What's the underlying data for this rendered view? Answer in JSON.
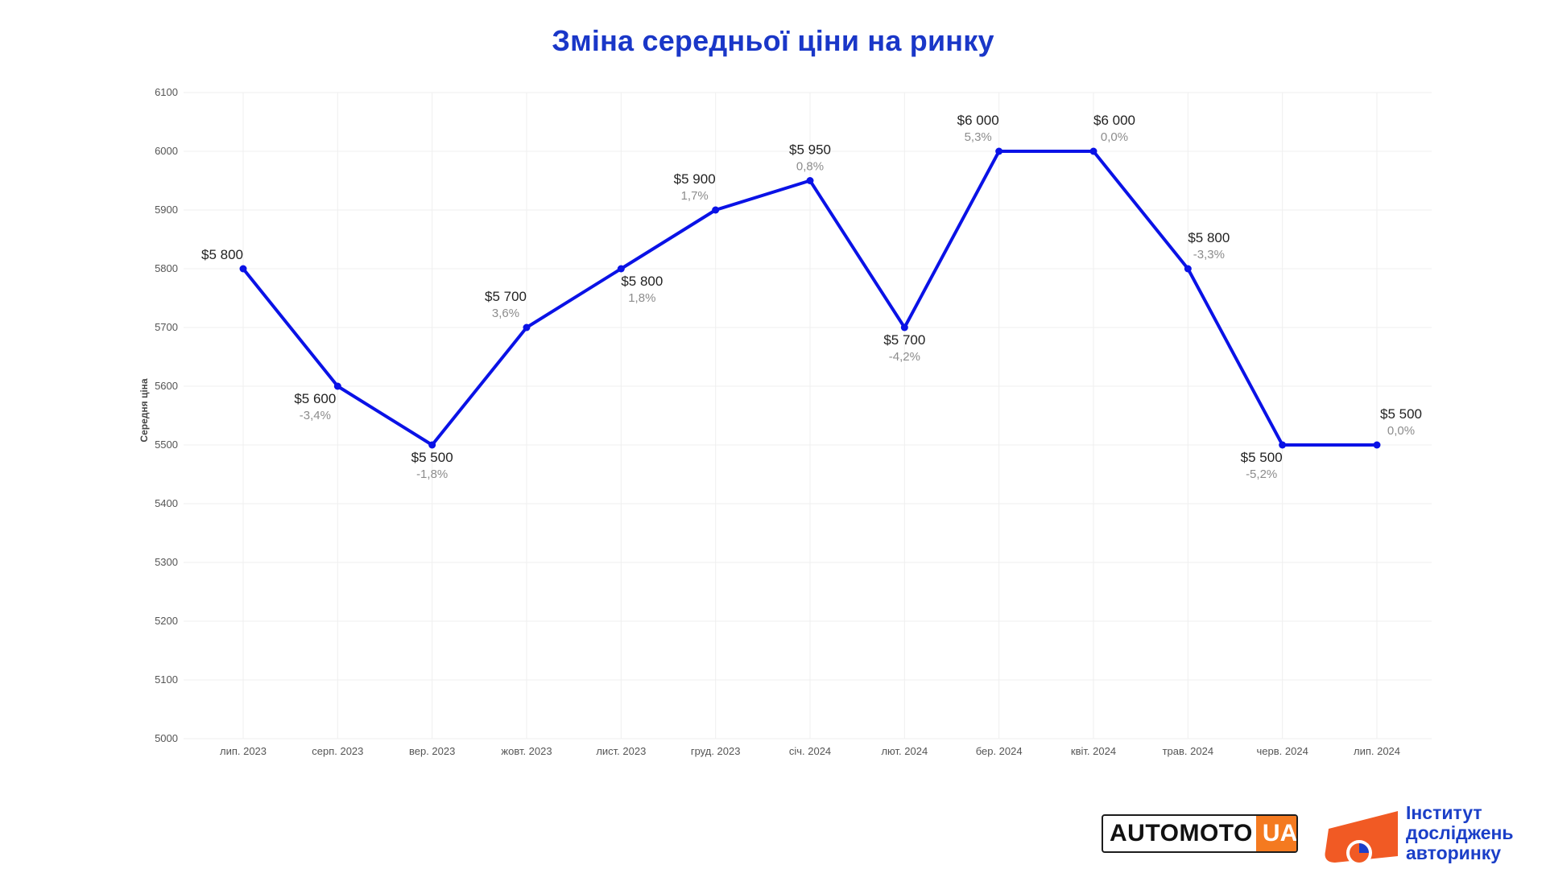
{
  "page": {
    "title": "Зміна середньої ціни на ринку"
  },
  "logos": {
    "automoto_main": "AUTOMOTO",
    "automoto_suffix": "UA",
    "institute_line1": "Інститут",
    "institute_line2": "досліджень",
    "institute_line3": "авторинку"
  },
  "colors": {
    "title": "#1a37c8",
    "line": "#0a12e6",
    "value_text": "#222222",
    "pct_text": "#8c8c8c",
    "automoto_accent": "#f47a20",
    "institute_orange": "#f15a24",
    "institute_blue": "#1b3fc8"
  },
  "chart_data": {
    "type": "line",
    "title": "Зміна середньої ціни на ринку",
    "xlabel": "",
    "ylabel": "Середня ціна",
    "ylim": [
      5000,
      6100
    ],
    "yticks": [
      5000,
      5100,
      5200,
      5300,
      5400,
      5500,
      5600,
      5700,
      5800,
      5900,
      6000,
      6100
    ],
    "grid": true,
    "legend": "none",
    "categories": [
      "лип. 2023",
      "серп. 2023",
      "вер. 2023",
      "жовт. 2023",
      "лист. 2023",
      "груд. 2023",
      "січ. 2024",
      "лют. 2024",
      "бер. 2024",
      "квіт. 2024",
      "трав. 2024",
      "черв. 2024",
      "лип. 2024"
    ],
    "values": [
      5800,
      5600,
      5500,
      5700,
      5800,
      5900,
      5950,
      5700,
      6000,
      6000,
      5800,
      5500,
      5500
    ],
    "value_labels": [
      "$5 800",
      "$5 600",
      "$5 500",
      "$5 700",
      "$5 800",
      "$5 900",
      "$5 950",
      "$5 700",
      "$6 000",
      "$6 000",
      "$5 800",
      "$5 500",
      "$5 500"
    ],
    "pct_change_labels": [
      "",
      "-3,4%",
      "-1,8%",
      "3,6%",
      "1,8%",
      "1,7%",
      "0,8%",
      "-4,2%",
      "5,3%",
      "0,0%",
      "-3,3%",
      "-5,2%",
      "0,0%"
    ]
  }
}
